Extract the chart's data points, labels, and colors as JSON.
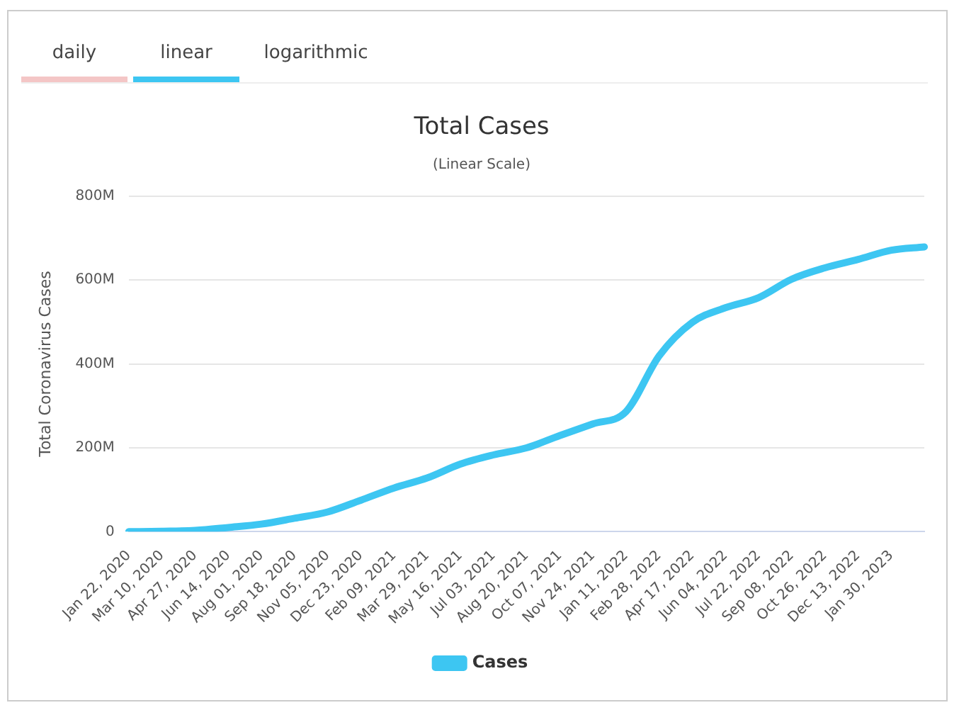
{
  "chart_data": {
    "type": "line",
    "title": "Total Cases",
    "subtitle": "(Linear Scale)",
    "ylabel": "Total Coronavirus Cases",
    "annotations": [
      "daily",
      "linear",
      "logarithmic"
    ],
    "categories": [
      "Jan 22, 2020",
      "Mar 10, 2020",
      "Apr 27, 2020",
      "Jun 14, 2020",
      "Aug 01, 2020",
      "Sep 18, 2020",
      "Nov 05, 2020",
      "Dec 23, 2020",
      "Feb 09, 2021",
      "Mar 29, 2021",
      "May 16, 2021",
      "Jul 03, 2021",
      "Aug 20, 2021",
      "Oct 07, 2021",
      "Nov 24, 2021",
      "Jan 11, 2022",
      "Feb 28, 2022",
      "Apr 17, 2022",
      "Jun 04, 2022",
      "Jul 22, 2022",
      "Sep 08, 2022",
      "Oct 26, 2022",
      "Dec 13, 2022",
      "Jan 30, 2023",
      null
    ],
    "series": [
      {
        "name": "Cases",
        "color": "#3dc6f2",
        "values": [
          0,
          1,
          3,
          10,
          18,
          32,
          47,
          75,
          104,
          128,
          161,
          183,
          200,
          229,
          257,
          286,
          419,
          499,
          534,
          558,
          602,
          629,
          649,
          671,
          679
        ]
      }
    ],
    "ylim": [
      0,
      800
    ],
    "yticks": [
      {
        "value": 0,
        "label": "0"
      },
      {
        "value": 200,
        "label": "200M"
      },
      {
        "value": 400,
        "label": "400M"
      },
      {
        "value": 600,
        "label": "600M"
      },
      {
        "value": 800,
        "label": "800M"
      }
    ],
    "grid": "y",
    "legend": "bottom",
    "marker": "none",
    "line_style": "solid"
  }
}
